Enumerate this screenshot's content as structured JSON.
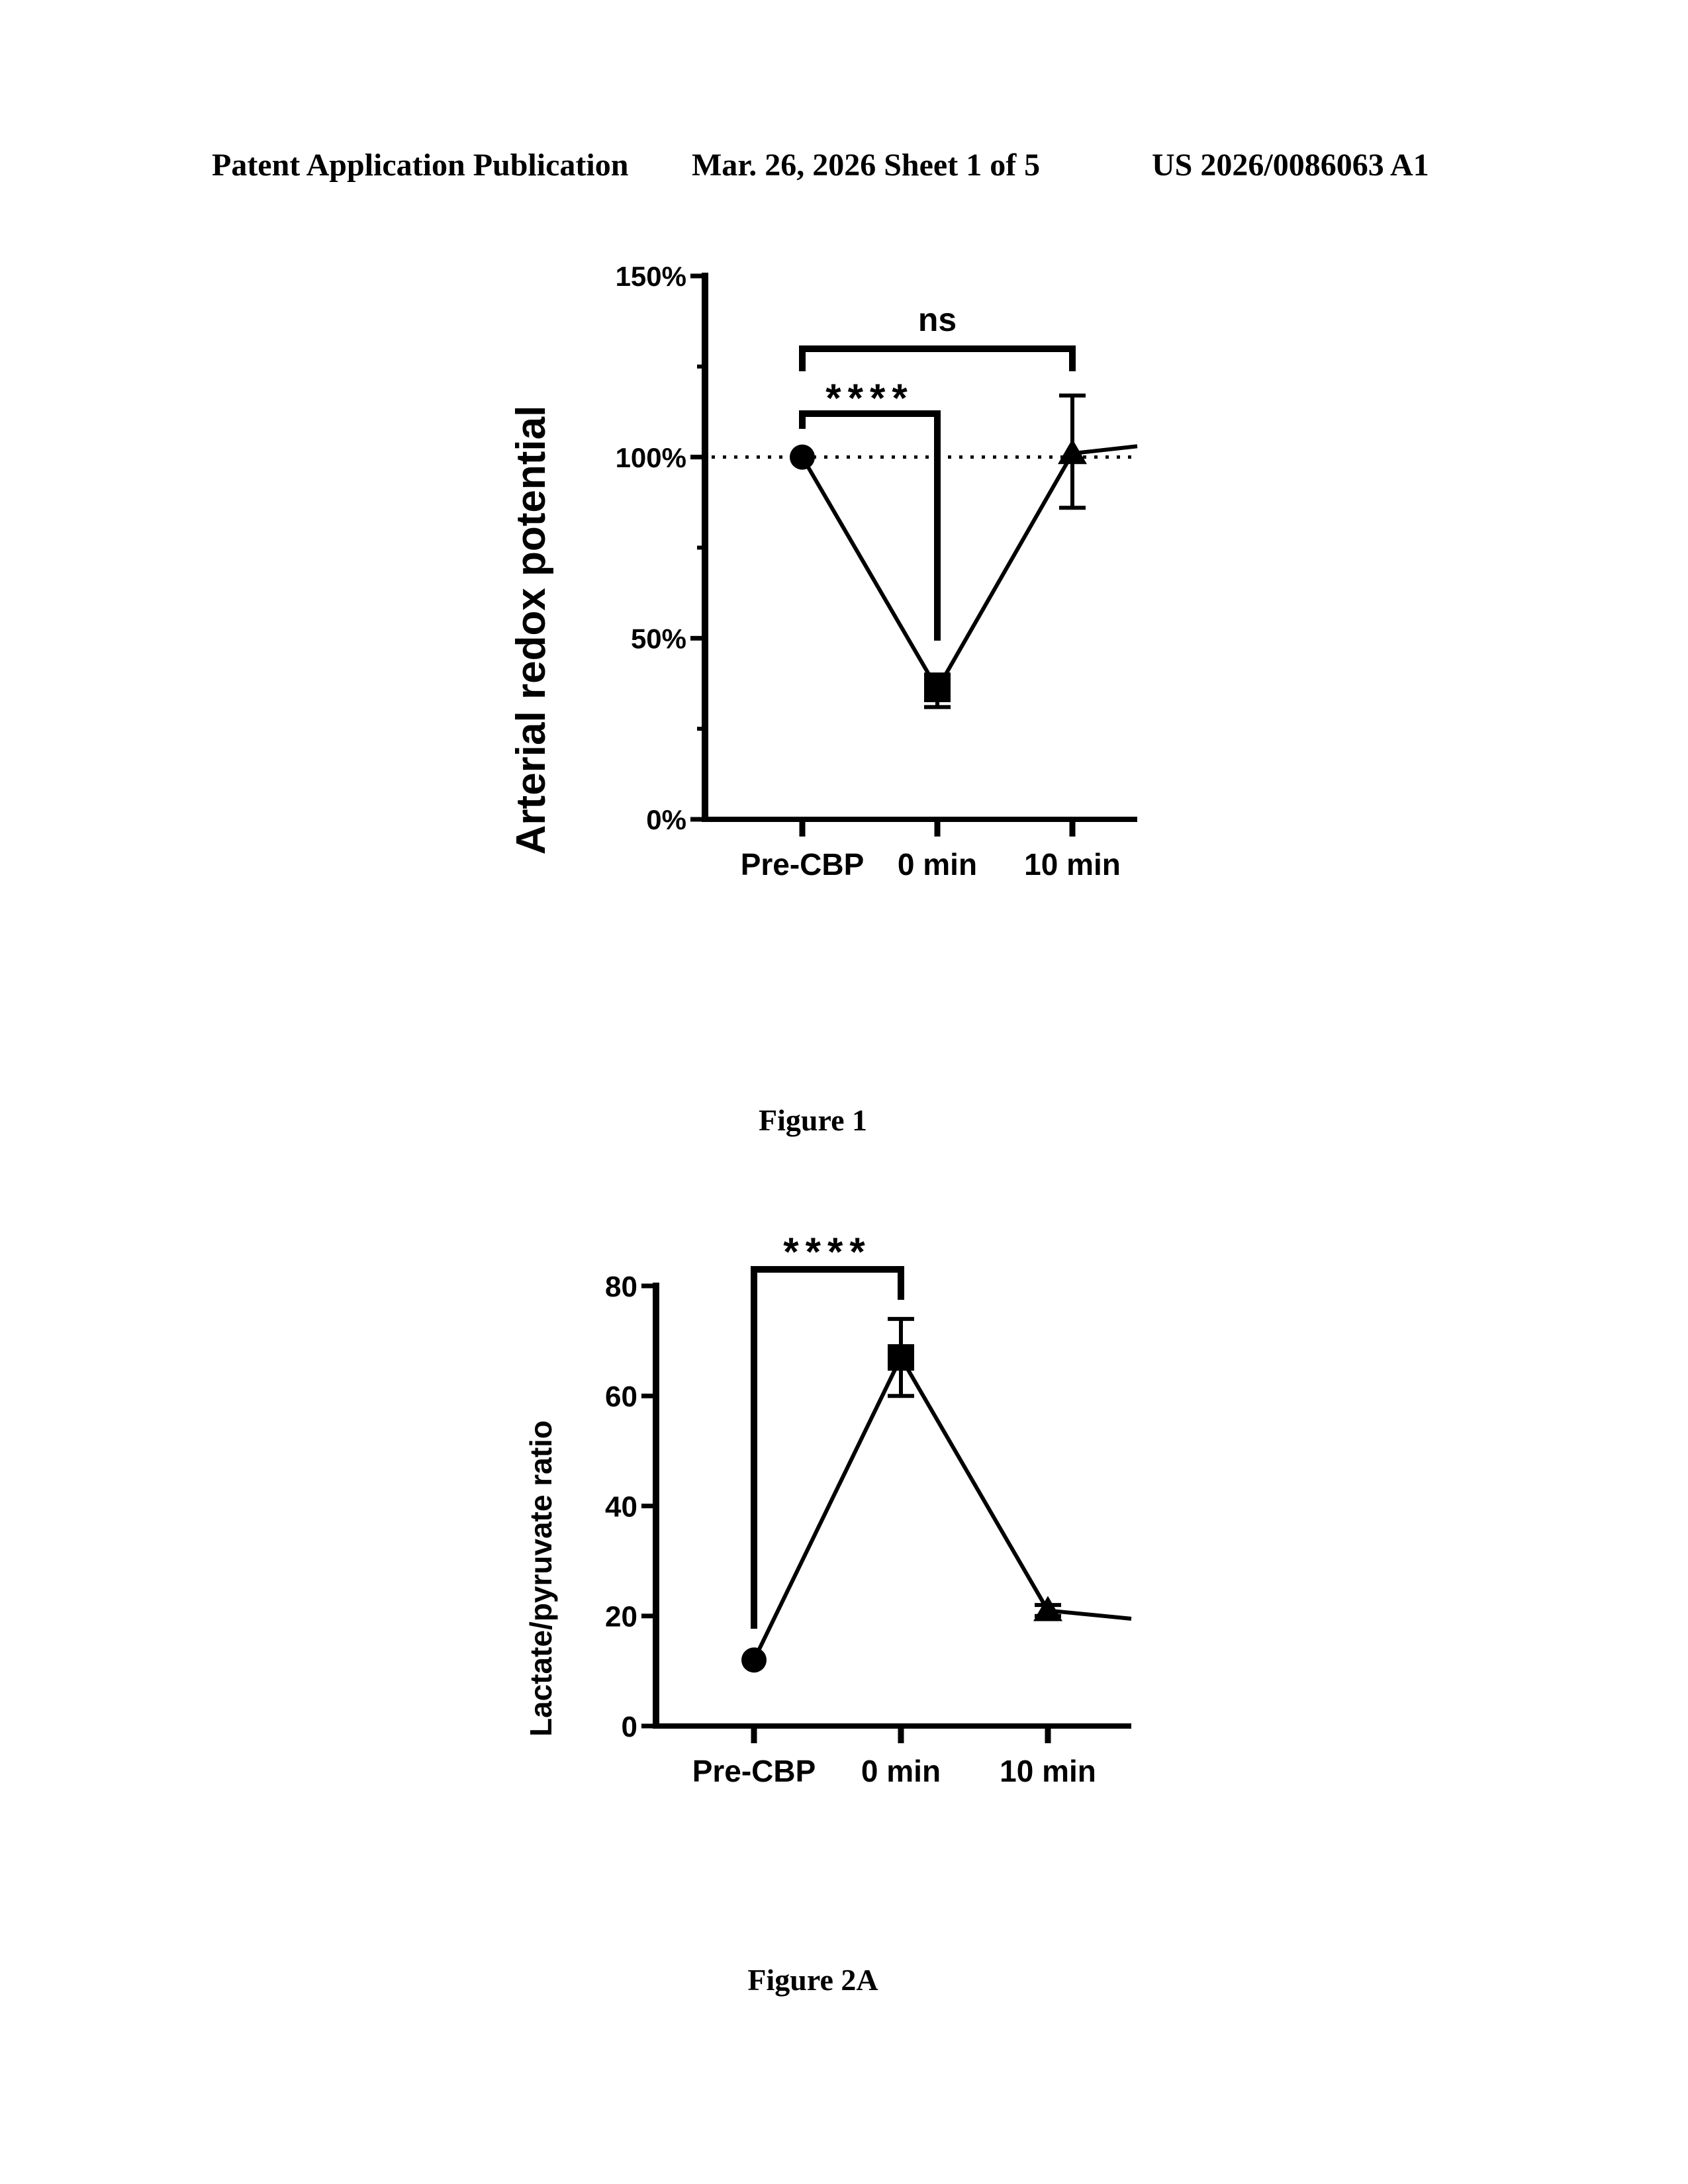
{
  "header": {
    "left": "Patent Application Publication",
    "middle": "Mar. 26, 2026  Sheet 1 of 5",
    "right": "US 2026/0086063 A1"
  },
  "captions": [
    "Figure 1",
    "Figure 2A"
  ],
  "chart_data": [
    {
      "type": "line",
      "title": "Figure 1",
      "ylabel": "Arterial redox potential",
      "xlabel": "",
      "categories": [
        "Pre-CBP",
        "0 min",
        "10 min"
      ],
      "values": [
        100,
        36,
        101
      ],
      "error_low": [
        100,
        31,
        86
      ],
      "error_high": [
        100,
        40,
        117
      ],
      "markers": [
        "circle",
        "square",
        "triangle"
      ],
      "trailing_value": 103,
      "reference_line": 100,
      "ylim": [
        0,
        150
      ],
      "yticks": [
        0,
        50,
        100,
        150
      ],
      "ytick_labels": [
        "0%",
        "50%",
        "100%",
        "150%"
      ],
      "unit": "%",
      "annotations": [
        {
          "from": "Pre-CBP",
          "to": "10 min",
          "label": "ns"
        },
        {
          "from": "Pre-CBP",
          "to": "0 min",
          "label": "****"
        }
      ]
    },
    {
      "type": "line",
      "title": "Figure 2A",
      "ylabel": "Lactate/pyruvate ratio",
      "xlabel": "",
      "categories": [
        "Pre-CBP",
        "0 min",
        "10 min"
      ],
      "values": [
        12,
        67,
        21
      ],
      "error_low": [
        12,
        60,
        20
      ],
      "error_high": [
        12,
        74,
        22
      ],
      "markers": [
        "circle",
        "square",
        "triangle"
      ],
      "trailing_value": 19.5,
      "ylim": [
        0,
        80
      ],
      "yticks": [
        0,
        20,
        40,
        60,
        80
      ],
      "ytick_labels": [
        "0",
        "20",
        "40",
        "60",
        "80"
      ],
      "annotations": [
        {
          "from": "Pre-CBP",
          "to": "0 min",
          "label": "****"
        }
      ]
    }
  ]
}
